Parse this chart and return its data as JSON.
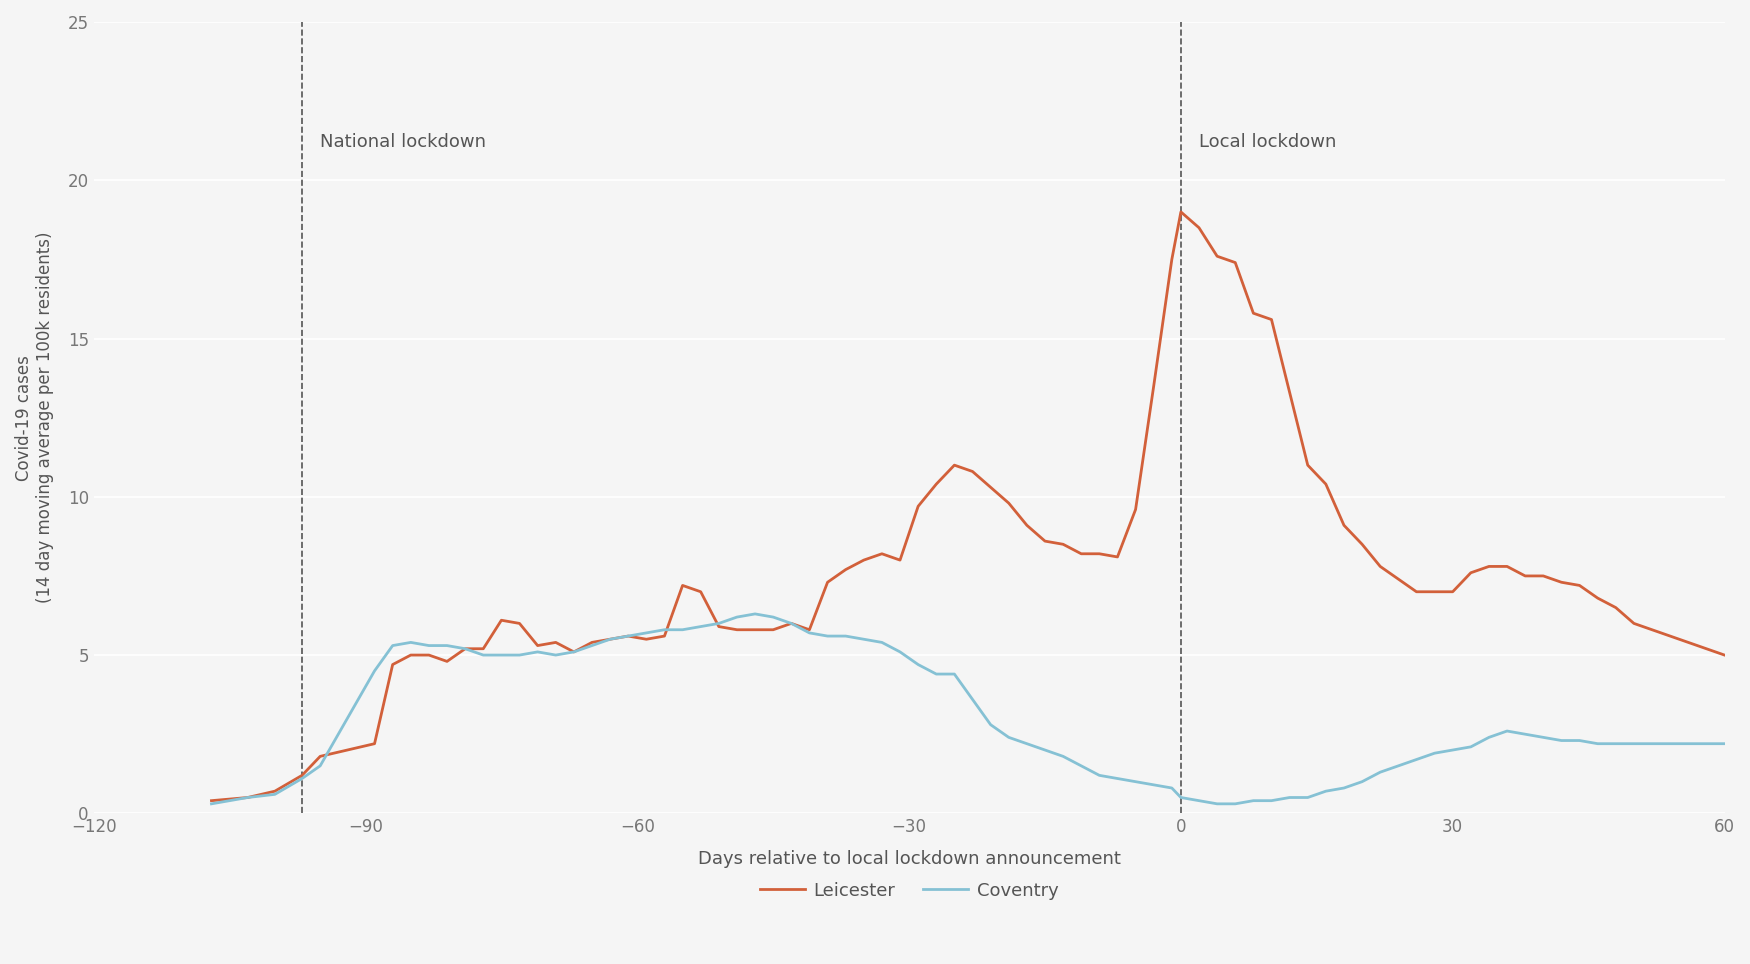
{
  "title": "",
  "xlabel": "Days relative to local lockdown announcement",
  "ylabel": "Covid-19 cases\n(14 day moving average per 100k residents)",
  "xlim": [
    -120,
    60
  ],
  "ylim": [
    0,
    25
  ],
  "xticks": [
    -120,
    -90,
    -60,
    -30,
    0,
    30,
    60
  ],
  "yticks": [
    0,
    5,
    10,
    15,
    20,
    25
  ],
  "national_lockdown_x": -97,
  "local_lockdown_x": 0,
  "national_lockdown_label": "National lockdown",
  "local_lockdown_label": "Local lockdown",
  "leicester_color": "#D2603A",
  "coventry_color": "#85C1D4",
  "background_color": "#F5F5F5",
  "grid_color": "#FFFFFF",
  "leicester_x": [
    -107,
    -103,
    -100,
    -97,
    -95,
    -92,
    -89,
    -87,
    -85,
    -83,
    -81,
    -79,
    -77,
    -75,
    -73,
    -71,
    -69,
    -67,
    -65,
    -63,
    -61,
    -59,
    -57,
    -55,
    -53,
    -51,
    -49,
    -47,
    -45,
    -43,
    -41,
    -39,
    -37,
    -35,
    -33,
    -31,
    -29,
    -27,
    -25,
    -23,
    -21,
    -19,
    -17,
    -15,
    -13,
    -11,
    -9,
    -7,
    -5,
    -3,
    -1,
    0,
    2,
    4,
    6,
    8,
    10,
    12,
    14,
    16,
    18,
    20,
    22,
    24,
    26,
    28,
    30,
    32,
    34,
    36,
    38,
    40,
    42,
    44,
    46,
    48,
    50,
    52,
    54,
    56,
    58,
    60
  ],
  "leicester_y": [
    0.4,
    0.5,
    0.7,
    1.2,
    1.8,
    2.0,
    2.2,
    4.7,
    5.0,
    5.0,
    4.8,
    5.2,
    5.2,
    6.1,
    6.0,
    5.3,
    5.4,
    5.1,
    5.4,
    5.5,
    5.6,
    5.5,
    5.6,
    7.2,
    7.0,
    5.9,
    5.8,
    5.8,
    5.8,
    6.0,
    5.8,
    7.3,
    7.7,
    8.0,
    8.2,
    8.0,
    9.7,
    10.4,
    11.0,
    10.8,
    10.3,
    9.8,
    9.1,
    8.6,
    8.5,
    8.2,
    8.2,
    8.1,
    9.6,
    13.5,
    17.5,
    19.0,
    18.5,
    17.6,
    17.4,
    15.8,
    15.6,
    13.3,
    11.0,
    10.4,
    9.1,
    8.5,
    7.8,
    7.4,
    7.0,
    7.0,
    7.0,
    7.6,
    7.8,
    7.8,
    7.5,
    7.5,
    7.3,
    7.2,
    6.8,
    6.5,
    6.0,
    5.8,
    5.6,
    5.4,
    5.2,
    5.0
  ],
  "coventry_x": [
    -107,
    -103,
    -100,
    -97,
    -95,
    -92,
    -89,
    -87,
    -85,
    -83,
    -81,
    -79,
    -77,
    -75,
    -73,
    -71,
    -69,
    -67,
    -65,
    -63,
    -61,
    -59,
    -57,
    -55,
    -53,
    -51,
    -49,
    -47,
    -45,
    -43,
    -41,
    -39,
    -37,
    -35,
    -33,
    -31,
    -29,
    -27,
    -25,
    -23,
    -21,
    -19,
    -17,
    -15,
    -13,
    -11,
    -9,
    -7,
    -5,
    -3,
    -1,
    0,
    2,
    4,
    6,
    8,
    10,
    12,
    14,
    16,
    18,
    20,
    22,
    24,
    26,
    28,
    30,
    32,
    34,
    36,
    38,
    40,
    42,
    44,
    46,
    48,
    50,
    52,
    54,
    56,
    58,
    60
  ],
  "coventry_y": [
    0.3,
    0.5,
    0.6,
    1.1,
    1.5,
    3.0,
    4.5,
    5.3,
    5.4,
    5.3,
    5.3,
    5.2,
    5.0,
    5.0,
    5.0,
    5.1,
    5.0,
    5.1,
    5.3,
    5.5,
    5.6,
    5.7,
    5.8,
    5.8,
    5.9,
    6.0,
    6.2,
    6.3,
    6.2,
    6.0,
    5.7,
    5.6,
    5.6,
    5.5,
    5.4,
    5.1,
    4.7,
    4.4,
    4.4,
    3.6,
    2.8,
    2.4,
    2.2,
    2.0,
    1.8,
    1.5,
    1.2,
    1.1,
    1.0,
    0.9,
    0.8,
    0.5,
    0.4,
    0.3,
    0.3,
    0.4,
    0.4,
    0.5,
    0.5,
    0.7,
    0.8,
    1.0,
    1.3,
    1.5,
    1.7,
    1.9,
    2.0,
    2.1,
    2.4,
    2.6,
    2.5,
    2.4,
    2.3,
    2.3,
    2.2,
    2.2,
    2.2,
    2.2,
    2.2,
    2.2,
    2.2,
    2.2
  ]
}
